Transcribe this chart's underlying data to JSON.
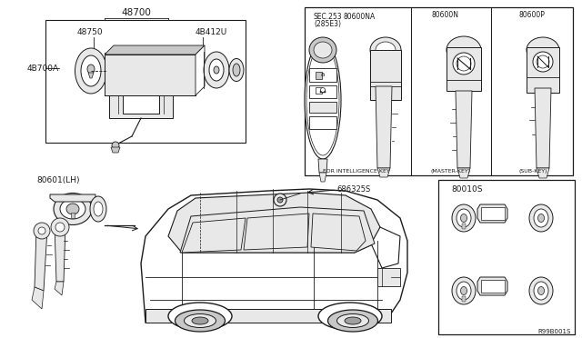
{
  "bg_color": "#ffffff",
  "line_color": "#1a1a1a",
  "gray1": "#c8c8c8",
  "gray2": "#e8e8e8",
  "gray3": "#a0a0a0",
  "labels": {
    "top_label": "48700",
    "part1": "48750",
    "part2": "4B412U",
    "part3": "4B700A",
    "door_lock": "80601(LH)",
    "fuel_cap": "686325S",
    "lock_set": "80010S",
    "ref_code": "R99B001S",
    "sec_label": "SEC.253\n(285E3)",
    "key1_label": "80600NA",
    "key2_label": "80600N",
    "key3_label": "80600P",
    "key1_cap": "FOR INTELLIGENCE KEY",
    "key2_cap": "(MASTER-KEY)",
    "key3_cap": "(SUB-KEY)"
  },
  "figsize": [
    6.4,
    3.72
  ],
  "dpi": 100
}
